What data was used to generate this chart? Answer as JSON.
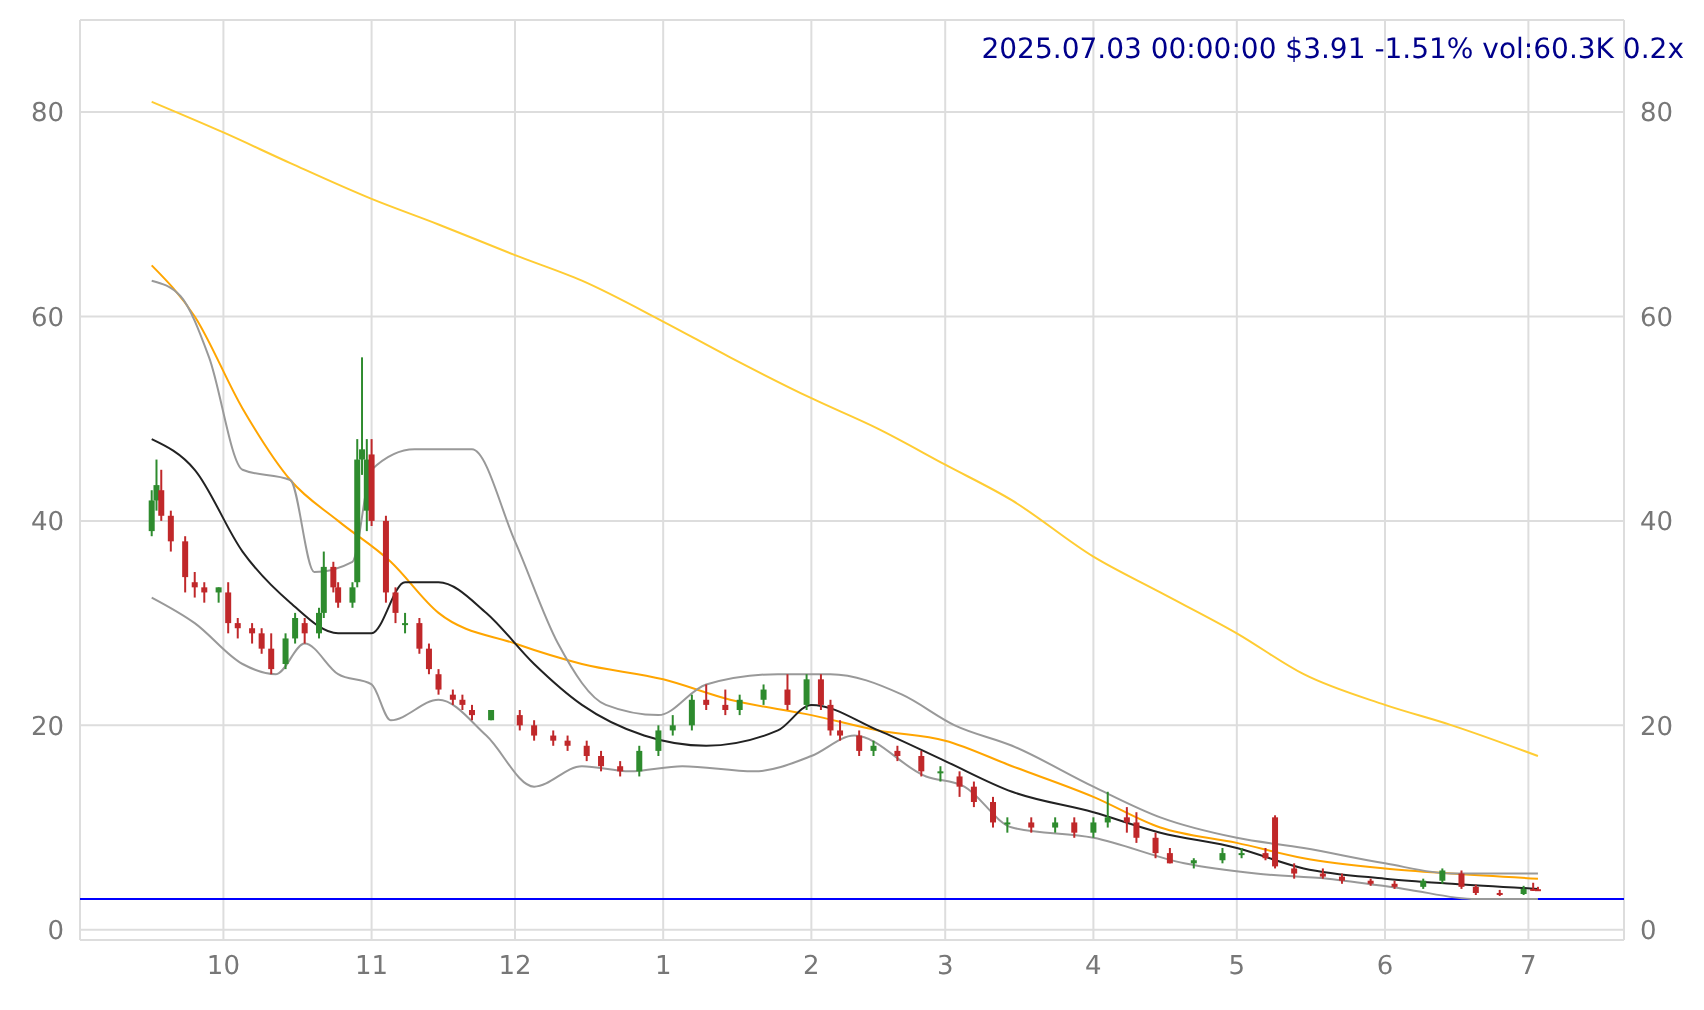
{
  "chart_data": {
    "type": "candlestick",
    "title": "2025.07.03 00:00:00 $3.91 -1.51% vol:60.3K 0.2x",
    "x": [
      "2024-09-16",
      "2024-09-17",
      "2024-09-18",
      "2024-09-20",
      "2024-09-23",
      "2024-09-25",
      "2024-09-27",
      "2024-09-30",
      "2024-10-02",
      "2024-10-04",
      "2024-10-07",
      "2024-10-09",
      "2024-10-11",
      "2024-10-14",
      "2024-10-16",
      "2024-10-18",
      "2024-10-21",
      "2024-10-22",
      "2024-10-24",
      "2024-10-25",
      "2024-10-28",
      "2024-10-29",
      "2024-10-30",
      "2024-10-31",
      "2024-11-01",
      "2024-11-04",
      "2024-11-06",
      "2024-11-08",
      "2024-11-11",
      "2024-11-13",
      "2024-11-15",
      "2024-11-18",
      "2024-11-20",
      "2024-11-22",
      "2024-11-26",
      "2024-12-02",
      "2024-12-05",
      "2024-12-09",
      "2024-12-12",
      "2024-12-16",
      "2024-12-19",
      "2024-12-23",
      "2024-12-27",
      "2024-12-31",
      "2025-01-03",
      "2025-01-07",
      "2025-01-10",
      "2025-01-14",
      "2025-01-17",
      "2025-01-22",
      "2025-01-27",
      "2025-01-31",
      "2025-02-03",
      "2025-02-05",
      "2025-02-07",
      "2025-02-11",
      "2025-02-14",
      "2025-02-19",
      "2025-02-24",
      "2025-02-28",
      "2025-03-04",
      "2025-03-07",
      "2025-03-11",
      "2025-03-14",
      "2025-03-19",
      "2025-03-24",
      "2025-03-28",
      "2025-04-01",
      "2025-04-04",
      "2025-04-08",
      "2025-04-10",
      "2025-04-14",
      "2025-04-17",
      "2025-04-22",
      "2025-04-28",
      "2025-05-02",
      "2025-05-07",
      "2025-05-09",
      "2025-05-13",
      "2025-05-19",
      "2025-05-23",
      "2025-05-29",
      "2025-06-03",
      "2025-06-09",
      "2025-06-13",
      "2025-06-17",
      "2025-06-20",
      "2025-06-25",
      "2025-06-30",
      "2025-07-02",
      "2025-07-03"
    ],
    "ohlc": [
      [
        39,
        43,
        38.5,
        42
      ],
      [
        42,
        46,
        41,
        43.5
      ],
      [
        43,
        45,
        40,
        40.5
      ],
      [
        40.5,
        41,
        37,
        38
      ],
      [
        38,
        38.5,
        33,
        34.5
      ],
      [
        34,
        35,
        32.5,
        33.5
      ],
      [
        33.5,
        34,
        32,
        33
      ],
      [
        33,
        33.5,
        32,
        33.5
      ],
      [
        33,
        34,
        29,
        30
      ],
      [
        30,
        30.5,
        28.5,
        29.5
      ],
      [
        29.5,
        30,
        28,
        29
      ],
      [
        29,
        29.5,
        27,
        27.5
      ],
      [
        27.5,
        29,
        25,
        25.5
      ],
      [
        26,
        29,
        25.5,
        28.5
      ],
      [
        28.5,
        31,
        28,
        30.5
      ],
      [
        30,
        30.5,
        28,
        29
      ],
      [
        29,
        31.5,
        28.5,
        31
      ],
      [
        31,
        37,
        30.5,
        35.5
      ],
      [
        35.5,
        36,
        33,
        33.5
      ],
      [
        33.5,
        34,
        31.5,
        32
      ],
      [
        32,
        34,
        31.5,
        33.5
      ],
      [
        34,
        48,
        33.5,
        46
      ],
      [
        46,
        56,
        44.5,
        47
      ],
      [
        41,
        48,
        39,
        46
      ],
      [
        46.5,
        48,
        39.5,
        40
      ],
      [
        40,
        40.5,
        32,
        33
      ],
      [
        33,
        33.5,
        30,
        31
      ],
      [
        30,
        31,
        29,
        30
      ],
      [
        30,
        30.5,
        27,
        27.5
      ],
      [
        27.5,
        28,
        25,
        25.5
      ],
      [
        25,
        25.5,
        23,
        23.5
      ],
      [
        23,
        23.5,
        22,
        22.5
      ],
      [
        22.5,
        23,
        21.5,
        22
      ],
      [
        21.5,
        22,
        20.5,
        21
      ],
      [
        20.5,
        21.5,
        20.5,
        21.5
      ],
      [
        21,
        21.5,
        19.5,
        20
      ],
      [
        20,
        20.5,
        18.5,
        19
      ],
      [
        19,
        19.5,
        18,
        18.5
      ],
      [
        18.5,
        19,
        17.5,
        18
      ],
      [
        18,
        18.5,
        16.5,
        17
      ],
      [
        17,
        17.5,
        15.5,
        16
      ],
      [
        16,
        16.5,
        15,
        15.5
      ],
      [
        15.5,
        18,
        15,
        17.5
      ],
      [
        17.5,
        20,
        17,
        19.5
      ],
      [
        19.5,
        21,
        19,
        20
      ],
      [
        20,
        23,
        19.5,
        22.5
      ],
      [
        22.5,
        24,
        21.5,
        22
      ],
      [
        22,
        23.5,
        21,
        21.5
      ],
      [
        21.5,
        23,
        21,
        22.5
      ],
      [
        22.5,
        24,
        22,
        23.5
      ],
      [
        23.5,
        25,
        21.5,
        22
      ],
      [
        22,
        25,
        21.5,
        24.5
      ],
      [
        24.5,
        25,
        21.5,
        22
      ],
      [
        22,
        22.5,
        19,
        19.5
      ],
      [
        19.5,
        20.5,
        18.5,
        19
      ],
      [
        19,
        19.5,
        17,
        17.5
      ],
      [
        17.5,
        18.5,
        17,
        18
      ],
      [
        17.5,
        18,
        16.5,
        17
      ],
      [
        17,
        17.5,
        15,
        15.5
      ],
      [
        15.5,
        16,
        14.5,
        15.5
      ],
      [
        15,
        15.5,
        13,
        14
      ],
      [
        14,
        14.5,
        12,
        12.5
      ],
      [
        12.5,
        13,
        10,
        10.5
      ],
      [
        10.5,
        11,
        9.5,
        10.5
      ],
      [
        10.5,
        11,
        9.5,
        10
      ],
      [
        10,
        11,
        9.5,
        10.5
      ],
      [
        10.5,
        11,
        9,
        9.5
      ],
      [
        9.5,
        11,
        9,
        10.5
      ],
      [
        10.5,
        13.5,
        10,
        11
      ],
      [
        11,
        12,
        9.5,
        10.5
      ],
      [
        10.5,
        11.5,
        8.5,
        9
      ],
      [
        9,
        9.5,
        7,
        7.5
      ],
      [
        7.5,
        8,
        6.5,
        6.5
      ],
      [
        6.5,
        7,
        6,
        6.8
      ],
      [
        6.8,
        8,
        6.5,
        7.5
      ],
      [
        7.5,
        8,
        7,
        7.5
      ],
      [
        7.5,
        8,
        6.8,
        7
      ],
      [
        11,
        11.2,
        6,
        6.2
      ],
      [
        6,
        6.5,
        5,
        5.5
      ],
      [
        5.5,
        6,
        5,
        5.2
      ],
      [
        5.2,
        5.5,
        4.5,
        4.8
      ],
      [
        4.8,
        5,
        4.3,
        4.5
      ],
      [
        4.5,
        4.8,
        4,
        4.2
      ],
      [
        4.2,
        5,
        4,
        4.8
      ],
      [
        4.8,
        6,
        4.5,
        5.8
      ],
      [
        5.5,
        5.8,
        4,
        4.2
      ],
      [
        4.2,
        4.4,
        3.4,
        3.6
      ],
      [
        3.6,
        3.9,
        3.3,
        3.5
      ],
      [
        3.5,
        4.3,
        3.4,
        4
      ],
      [
        4,
        4.6,
        3.8,
        3.97
      ],
      [
        3.97,
        4.2,
        3.8,
        3.91
      ]
    ],
    "series": [
      {
        "type": "line",
        "color": "#ffcc33",
        "x": [
          "2024-09-16",
          "2024-10-01",
          "2024-10-15",
          "2024-11-01",
          "2024-11-15",
          "2024-12-01",
          "2024-12-15",
          "2025-01-01",
          "2025-01-15",
          "2025-02-01",
          "2025-02-15",
          "2025-03-01",
          "2025-03-15",
          "2025-04-01",
          "2025-04-15",
          "2025-05-01",
          "2025-05-15",
          "2025-06-01",
          "2025-06-15",
          "2025-07-03"
        ],
        "values": [
          81,
          78,
          75,
          71.5,
          69,
          66,
          63.5,
          59.5,
          56,
          52,
          49,
          45.5,
          42,
          36.5,
          33,
          29,
          25,
          22,
          20,
          17
        ]
      },
      {
        "type": "line",
        "color": "#ffa500",
        "x": [
          "2024-09-16",
          "2024-09-25",
          "2024-10-05",
          "2024-10-15",
          "2024-10-25",
          "2024-11-05",
          "2024-11-15",
          "2024-12-01",
          "2024-12-15",
          "2025-01-01",
          "2025-01-15",
          "2025-02-01",
          "2025-02-15",
          "2025-03-01",
          "2025-03-15",
          "2025-04-01",
          "2025-04-15",
          "2025-05-01",
          "2025-05-15",
          "2025-06-01",
          "2025-06-15",
          "2025-07-03"
        ],
        "values": [
          65,
          60,
          51,
          44,
          40,
          36,
          31,
          28,
          26,
          24.5,
          22.5,
          21,
          19.5,
          18.5,
          16,
          13,
          10,
          8.5,
          7,
          6,
          5.5,
          5
        ]
      },
      {
        "type": "line",
        "color": "#999999",
        "x": [
          "2024-09-16",
          "2024-09-22",
          "2024-09-28",
          "2024-10-05",
          "2024-10-15",
          "2024-10-20",
          "2024-10-28",
          "2024-11-01",
          "2024-11-10",
          "2024-11-22",
          "2024-12-01",
          "2024-12-10",
          "2024-12-20",
          "2024-12-31",
          "2025-01-10",
          "2025-01-25",
          "2025-02-05",
          "2025-02-20",
          "2025-03-03",
          "2025-03-15",
          "2025-04-01",
          "2025-04-15",
          "2025-05-01",
          "2025-05-15",
          "2025-06-01",
          "2025-06-15",
          "2025-07-03"
        ],
        "values": [
          63.5,
          62,
          56,
          45,
          44,
          35,
          36,
          45,
          47,
          47,
          38,
          28,
          22,
          21,
          24,
          25,
          25,
          23,
          20,
          18,
          14,
          11,
          9,
          8,
          6.5,
          5.5,
          5.5
        ]
      },
      {
        "type": "line",
        "color": "#999999",
        "x": [
          "2024-09-16",
          "2024-09-25",
          "2024-10-05",
          "2024-10-12",
          "2024-10-18",
          "2024-10-25",
          "2024-11-01",
          "2024-11-05",
          "2024-11-15",
          "2024-11-25",
          "2024-12-05",
          "2024-12-15",
          "2024-12-25",
          "2025-01-05",
          "2025-01-20",
          "2025-02-01",
          "2025-02-10",
          "2025-02-25",
          "2025-03-05",
          "2025-03-15",
          "2025-04-01",
          "2025-04-20",
          "2025-05-05",
          "2025-05-20",
          "2025-06-05",
          "2025-06-20",
          "2025-07-03"
        ],
        "values": [
          32.5,
          30,
          26,
          25,
          28,
          25,
          24,
          20.5,
          22.5,
          19,
          14,
          16,
          15.5,
          16,
          15.5,
          17,
          19,
          15,
          14,
          10,
          9,
          6.5,
          5.5,
          5,
          4,
          3,
          3
        ]
      },
      {
        "type": "line",
        "color": "#222222",
        "x": [
          "2024-09-16",
          "2024-09-25",
          "2024-10-05",
          "2024-10-15",
          "2024-10-25",
          "2024-11-01",
          "2024-11-08",
          "2024-11-15",
          "2024-11-25",
          "2024-12-05",
          "2024-12-15",
          "2024-12-28",
          "2025-01-10",
          "2025-01-25",
          "2025-02-01",
          "2025-02-15",
          "2025-03-01",
          "2025-03-15",
          "2025-04-01",
          "2025-04-15",
          "2025-05-01",
          "2025-05-15",
          "2025-06-01",
          "2025-06-15",
          "2025-07-03"
        ],
        "values": [
          48,
          45,
          37,
          32,
          29,
          29,
          34,
          34,
          31,
          26,
          22,
          19,
          18,
          19.5,
          22,
          19.5,
          16.5,
          13.5,
          11.5,
          9.5,
          8,
          6,
          5,
          4.5,
          4
        ]
      }
    ],
    "ref_lines": [
      {
        "axis": "y",
        "value": 3,
        "color": "#0000ff"
      }
    ],
    "xlim": [
      "2024-09-01",
      "2025-07-21"
    ],
    "xticks": [
      {
        "value": "2024-10-01",
        "label": "10"
      },
      {
        "value": "2024-11-01",
        "label": "11"
      },
      {
        "value": "2024-12-01",
        "label": "12"
      },
      {
        "value": "2025-01-01",
        "label": "1"
      },
      {
        "value": "2025-02-01",
        "label": "2"
      },
      {
        "value": "2025-03-01",
        "label": "3"
      },
      {
        "value": "2025-04-01",
        "label": "4"
      },
      {
        "value": "2025-05-01",
        "label": "5"
      },
      {
        "value": "2025-06-01",
        "label": "6"
      },
      {
        "value": "2025-07-01",
        "label": "7"
      }
    ],
    "ylim": [
      -1,
      89
    ],
    "yticks": [
      0,
      20,
      40,
      60,
      80
    ],
    "y2lim": [
      -1,
      89
    ],
    "y2ticks": [
      0,
      20,
      40,
      60,
      80
    ],
    "grid": true
  }
}
